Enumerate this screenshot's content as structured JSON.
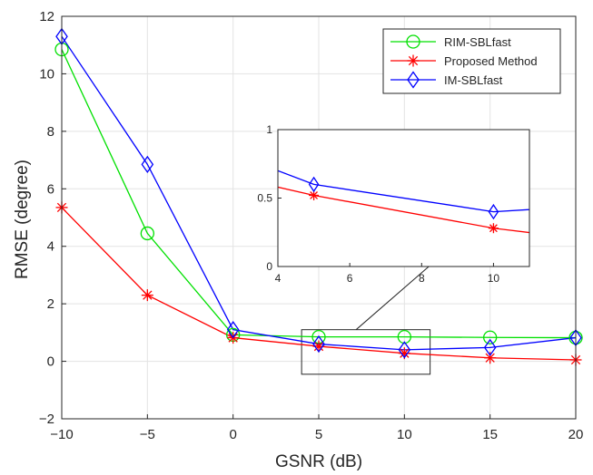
{
  "chart_data": {
    "type": "line",
    "title": "",
    "xlabel": "GSNR (dB)",
    "ylabel": "RMSE (degree)",
    "xlim": [
      -10,
      20
    ],
    "ylim": [
      -2,
      12
    ],
    "x": [
      -10,
      -5,
      0,
      5,
      10,
      15,
      20
    ],
    "xticks": [
      "−10",
      "−5",
      "0",
      "5",
      "10",
      "15",
      "20"
    ],
    "yticks": [
      "−2",
      "0",
      "2",
      "4",
      "6",
      "8",
      "10",
      "12"
    ],
    "grid": true,
    "legend_position": "top-right",
    "series": [
      {
        "name": "RIM-SBLfast",
        "color": "#00e000",
        "marker": "circle",
        "values": [
          10.85,
          4.45,
          0.92,
          0.85,
          0.85,
          0.83,
          0.82
        ]
      },
      {
        "name": "Proposed Method",
        "color": "#ff0000",
        "marker": "asterisk",
        "values": [
          5.35,
          2.3,
          0.82,
          0.52,
          0.28,
          0.12,
          0.05
        ]
      },
      {
        "name": "IM-SBLfast",
        "color": "#0000ff",
        "marker": "diamond",
        "values": [
          11.3,
          6.85,
          1.1,
          0.6,
          0.4,
          0.48,
          0.82
        ]
      }
    ],
    "inset": {
      "xlim": [
        4,
        11
      ],
      "ylim": [
        0,
        1
      ],
      "xticks": [
        "4",
        "6",
        "8",
        "10"
      ],
      "yticks": [
        "0",
        "0.5",
        "1"
      ],
      "zoom_region": {
        "x": [
          4,
          11.5
        ],
        "y": [
          -0.45,
          1.1
        ]
      }
    }
  }
}
